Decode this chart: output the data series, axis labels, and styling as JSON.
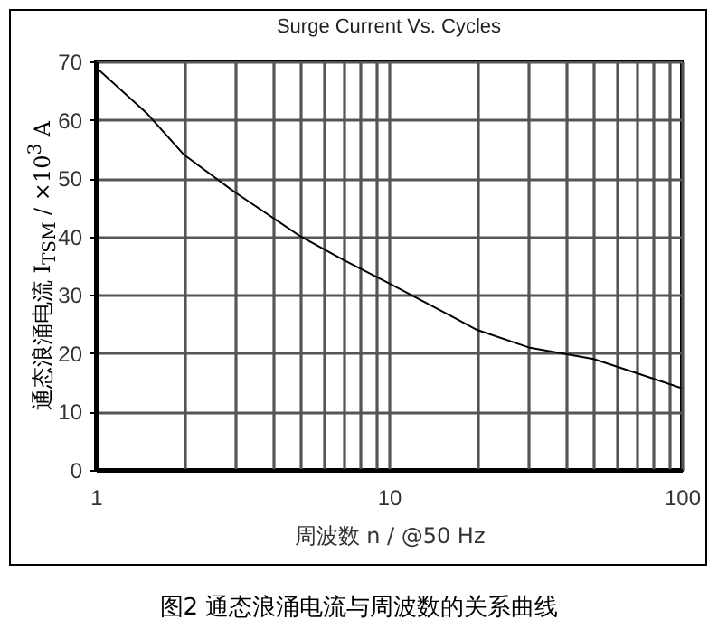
{
  "chart_data": {
    "type": "line",
    "title": "Surge Current Vs. Cycles",
    "xlabel": "周波数 n / @50 Hz",
    "ylabel": "通态浪涌电流 I$_{TSM}$ / ×10$^{3}$ A",
    "annotations": [
      "图2 通态浪涌电流与周波数的关系曲线"
    ],
    "x": [
      1,
      1.5,
      2,
      3,
      5,
      7,
      10,
      20,
      30,
      50,
      70,
      100
    ],
    "series": [
      {
        "color": "#000000",
        "values": [
          69,
          61,
          54,
          47.5,
          40,
          36,
          32,
          24,
          21,
          19,
          16.6,
          14
        ]
      }
    ],
    "log": "x",
    "xlim": [
      1,
      100
    ],
    "xticks": [
      1,
      {
        "value": 2,
        "label": null
      },
      {
        "value": 3,
        "label": null
      },
      {
        "value": 4,
        "label": null
      },
      {
        "value": 5,
        "label": null
      },
      {
        "value": 6,
        "label": null
      },
      {
        "value": 7,
        "label": null
      },
      {
        "value": 8,
        "label": null
      },
      {
        "value": 9,
        "label": null
      },
      10,
      {
        "value": 20,
        "label": null
      },
      {
        "value": 30,
        "label": null
      },
      {
        "value": 40,
        "label": null
      },
      {
        "value": 50,
        "label": null
      },
      {
        "value": 60,
        "label": null
      },
      {
        "value": 70,
        "label": null
      },
      {
        "value": 80,
        "label": null
      },
      {
        "value": 90,
        "label": null
      },
      100
    ],
    "ylim": [
      0,
      70
    ],
    "yticks": [
      0,
      10,
      20,
      30,
      40,
      50,
      60,
      70
    ],
    "grid": true,
    "marker": "none",
    "line_style": "solid"
  }
}
